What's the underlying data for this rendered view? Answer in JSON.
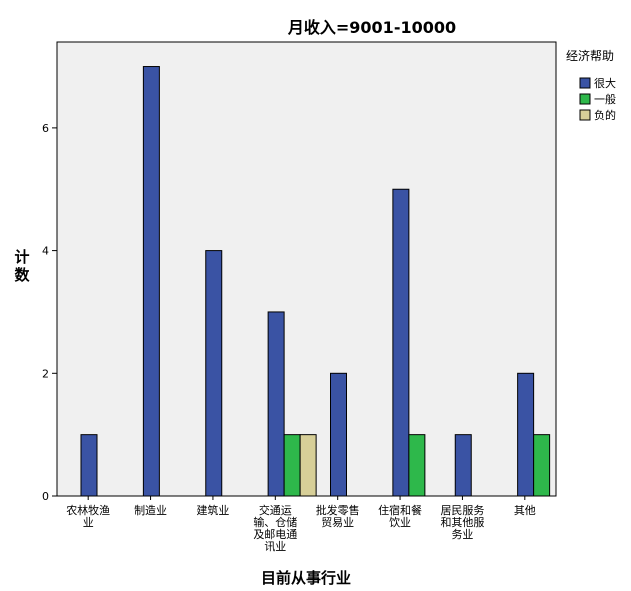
{
  "chart_data": {
    "type": "bar",
    "title": "月收入=9001-10000",
    "xlabel": "目前从事行业",
    "ylabel": "计数",
    "ylim": [
      0,
      7.4
    ],
    "yticks": [
      0,
      2,
      4,
      6
    ],
    "grid": false,
    "legend": {
      "title": "经济帮助",
      "placement": "top-right outside plot"
    },
    "categories": [
      [
        "农林牧渔",
        "业"
      ],
      [
        "制造业"
      ],
      [
        "建筑业"
      ],
      [
        "交通运",
        "输、仓储",
        "及邮电通",
        "讯业"
      ],
      [
        "批发零售",
        "贸易业"
      ],
      [
        "住宿和餐",
        "饮业"
      ],
      [
        "居民服务",
        "和其他服",
        "务业"
      ],
      [
        "其他"
      ]
    ],
    "series": [
      {
        "name": "很大",
        "color": "#3a53a4",
        "values": [
          1,
          7,
          4,
          3,
          2,
          5,
          1,
          2
        ]
      },
      {
        "name": "一般",
        "color": "#2eb84b",
        "values": [
          0,
          0,
          0,
          1,
          0,
          1,
          0,
          1
        ]
      },
      {
        "name": "负的",
        "color": "#d7cf98",
        "values": [
          0,
          0,
          0,
          1,
          0,
          0,
          0,
          0
        ]
      }
    ],
    "plot_background": "#f0f0f0"
  }
}
